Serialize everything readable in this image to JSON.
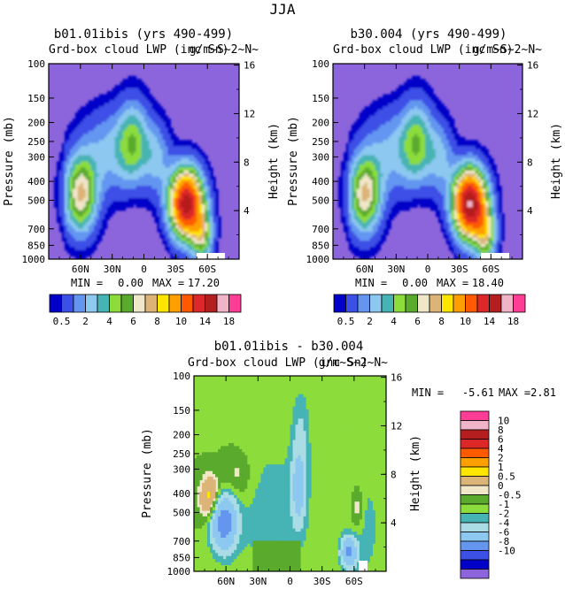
{
  "page_title": "JJA",
  "colors": {
    "low_palette": [
      "#8c64dc",
      "#0000c8",
      "#3c50e6",
      "#6496f0",
      "#8cc8f0",
      "#46b4b4",
      "#8cdc3c",
      "#5aaa2d",
      "#f0e6c8",
      "#dcb478",
      "#ffe600",
      "#ffa000",
      "#ff5a00",
      "#dc2828",
      "#b41e1e",
      "#f0b4c8",
      "#ff3c96"
    ],
    "diff_palette": [
      "#8c64dc",
      "#0000c8",
      "#3c50e6",
      "#6496f0",
      "#8cc8f0",
      "#aadce6",
      "#46b4b4",
      "#8cdc3c",
      "#5aaa2d",
      "#f0e6c8",
      "#dcb478",
      "#ffe600",
      "#ffa000",
      "#ff5a00",
      "#dc2828",
      "#b41e1e",
      "#f0b4c8",
      "#ff3c96"
    ]
  },
  "chart_data": [
    {
      "type": "heatmap",
      "title": "b01.01ibis (yrs 490-499)",
      "subtitle_left": "Grd-box cloud LWP (inc Sn)",
      "subtitle_right": "g/m~S~2~N~",
      "xlabel": "",
      "ylabel": "Pressure (mb)",
      "y2label": "Height (km)",
      "x_ticks": [
        "60N",
        "30N",
        "0",
        "30S",
        "60S"
      ],
      "y_ticks": [
        "100",
        "150",
        "200",
        "250",
        "300",
        "400",
        "500",
        "700",
        "850",
        "1000"
      ],
      "y2_ticks": [
        "16",
        "12",
        "8",
        "4"
      ],
      "stats": {
        "min_label": "MIN =",
        "min": "0.00",
        "max_label": "MAX =",
        "max": "17.20"
      },
      "levels": [
        0.5,
        1,
        2,
        3,
        4,
        5,
        6,
        7,
        8,
        9,
        10,
        12,
        14,
        16,
        18
      ],
      "label_levels": [
        "0.5",
        "2",
        "4",
        "6",
        "8",
        "10",
        "14",
        "18"
      ],
      "colorbar": "horizontal-bottom",
      "max_value": 17.2
    },
    {
      "type": "heatmap",
      "title": "b30.004 (yrs 490-499)",
      "subtitle_left": "Grd-box cloud LWP (inc Sn)",
      "subtitle_right": "g/m~S~2~N~",
      "xlabel": "",
      "ylabel": "Pressure (mb)",
      "y2label": "Height (km)",
      "x_ticks": [
        "60N",
        "30N",
        "0",
        "30S",
        "60S"
      ],
      "y_ticks": [
        "100",
        "150",
        "200",
        "250",
        "300",
        "400",
        "500",
        "700",
        "850",
        "1000"
      ],
      "y2_ticks": [
        "16",
        "12",
        "8",
        "4"
      ],
      "stats": {
        "min_label": "MIN =",
        "min": "0.00",
        "max_label": "MAX =",
        "max": "18.40"
      },
      "levels": [
        0.5,
        1,
        2,
        3,
        4,
        5,
        6,
        7,
        8,
        9,
        10,
        12,
        14,
        16,
        18
      ],
      "label_levels": [
        "0.5",
        "2",
        "4",
        "6",
        "8",
        "10",
        "14",
        "18"
      ],
      "colorbar": "horizontal-bottom",
      "max_value": 18.4
    },
    {
      "type": "heatmap",
      "title": "b01.01ibis - b30.004",
      "subtitle_left": "Grd-box cloud LWP (inc Sn)",
      "subtitle_right": "g/m~S~2~N~",
      "xlabel": "",
      "ylabel": "Pressure (mb)",
      "y2label": "Height (km)",
      "x_ticks": [
        "60N",
        "30N",
        "0",
        "30S",
        "60S"
      ],
      "y_ticks": [
        "100",
        "150",
        "200",
        "250",
        "300",
        "400",
        "500",
        "700",
        "850",
        "1000"
      ],
      "y2_ticks": [
        "16",
        "12",
        "8",
        "4"
      ],
      "stats": {
        "min_label": "MIN =",
        "min": "-5.61",
        "max_label": "MAX =",
        "max": "2.81"
      },
      "levels": [
        -10,
        -8,
        -6,
        -4,
        -2,
        -1,
        -0.5,
        0,
        0.5,
        1,
        2,
        4,
        6,
        8,
        10
      ],
      "label_levels": [
        "10",
        "8",
        "6",
        "4",
        "2",
        "1",
        "0.5",
        "0",
        "-0.5",
        "-1",
        "-2",
        "-4",
        "-6",
        "-8",
        "-10"
      ],
      "colorbar": "vertical-right"
    }
  ]
}
